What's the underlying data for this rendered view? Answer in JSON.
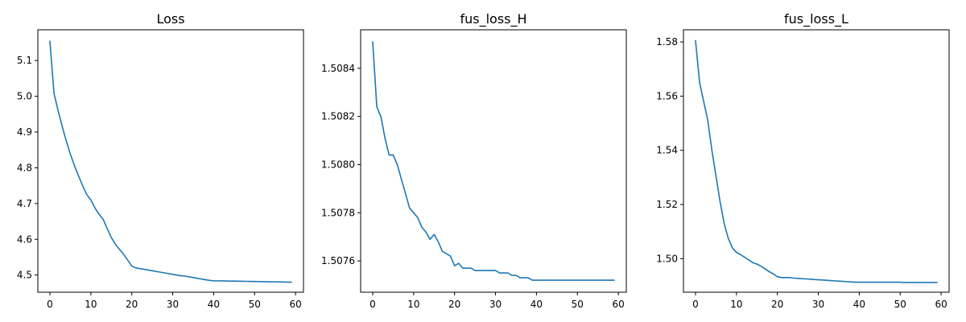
{
  "chart_data": [
    {
      "type": "line",
      "title": "Loss",
      "xlabel": "",
      "ylabel": "",
      "xlim": [
        -2.95,
        61.95
      ],
      "ylim": [
        4.452,
        5.186
      ],
      "xticks": [
        0,
        10,
        20,
        30,
        40,
        50,
        60
      ],
      "yticks": [
        4.5,
        4.6,
        4.7,
        4.8,
        4.9,
        5.0,
        5.1
      ],
      "ytick_labels": [
        "4.5",
        "4.6",
        "4.7",
        "4.8",
        "4.9",
        "5.0",
        "5.1"
      ],
      "grid": false,
      "color": "#1f77b4",
      "x": [
        0,
        1,
        2,
        3,
        4,
        5,
        6,
        7,
        8,
        9,
        10,
        11,
        12,
        13,
        14,
        15,
        16,
        17,
        18,
        19,
        20,
        21,
        22,
        23,
        24,
        25,
        26,
        27,
        28,
        29,
        30,
        31,
        32,
        33,
        34,
        35,
        36,
        37,
        38,
        39,
        40,
        41,
        42,
        43,
        44,
        45,
        46,
        47,
        48,
        49,
        50,
        51,
        52,
        53,
        54,
        55,
        56,
        57,
        58,
        59
      ],
      "y": [
        5.154,
        5.008,
        4.96,
        4.916,
        4.875,
        4.838,
        4.806,
        4.777,
        4.75,
        4.725,
        4.71,
        4.688,
        4.67,
        4.656,
        4.63,
        4.605,
        4.586,
        4.572,
        4.558,
        4.542,
        4.525,
        4.52,
        4.518,
        4.516,
        4.514,
        4.512,
        4.51,
        4.508,
        4.506,
        4.504,
        4.502,
        4.5,
        4.498,
        4.497,
        4.495,
        4.493,
        4.491,
        4.489,
        4.487,
        4.485,
        4.484,
        4.4838,
        4.4836,
        4.4834,
        4.4832,
        4.483,
        4.4828,
        4.4826,
        4.4824,
        4.4822,
        4.482,
        4.4818,
        4.4816,
        4.4814,
        4.4812,
        4.481,
        4.4808,
        4.4806,
        4.4804,
        4.48
      ]
    },
    {
      "type": "line",
      "title": "fus_loss_H",
      "xlabel": "",
      "ylabel": "",
      "xlim": [
        -2.95,
        61.95
      ],
      "ylim": [
        1.50747,
        1.50856
      ],
      "xticks": [
        0,
        10,
        20,
        30,
        40,
        50,
        60
      ],
      "yticks": [
        1.5076,
        1.5078,
        1.508,
        1.5082,
        1.5084
      ],
      "ytick_labels": [
        "1.5076",
        "1.5078",
        "1.5080",
        "1.5082",
        "1.5084"
      ],
      "grid": false,
      "color": "#1f77b4",
      "x": [
        0,
        1,
        2,
        3,
        4,
        5,
        6,
        7,
        8,
        9,
        10,
        11,
        12,
        13,
        14,
        15,
        16,
        17,
        18,
        19,
        20,
        21,
        22,
        23,
        24,
        25,
        26,
        27,
        28,
        29,
        30,
        31,
        32,
        33,
        34,
        35,
        36,
        37,
        38,
        39,
        40,
        41,
        42,
        43,
        44,
        45,
        46,
        47,
        48,
        49,
        50,
        51,
        52,
        53,
        54,
        55,
        56,
        57,
        58,
        59
      ],
      "y": [
        1.50851,
        1.50824,
        1.5082,
        1.50811,
        1.50804,
        1.50804,
        1.508,
        1.50794,
        1.50788,
        1.50782,
        1.5078,
        1.50778,
        1.50774,
        1.50772,
        1.50769,
        1.50771,
        1.50768,
        1.50764,
        1.50763,
        1.50762,
        1.50758,
        1.50759,
        1.50757,
        1.50757,
        1.50757,
        1.50756,
        1.50756,
        1.50756,
        1.50756,
        1.50756,
        1.50756,
        1.50755,
        1.50755,
        1.50755,
        1.50754,
        1.50754,
        1.50753,
        1.50753,
        1.50753,
        1.50752,
        1.50752,
        1.50752,
        1.50752,
        1.50752,
        1.50752,
        1.50752,
        1.50752,
        1.50752,
        1.50752,
        1.50752,
        1.50752,
        1.50752,
        1.50752,
        1.50752,
        1.50752,
        1.50752,
        1.50752,
        1.50752,
        1.50752,
        1.50752
      ]
    },
    {
      "type": "line",
      "title": "fus_loss_L",
      "xlabel": "",
      "ylabel": "",
      "xlim": [
        -2.95,
        61.95
      ],
      "ylim": [
        1.4876,
        1.5845
      ],
      "xticks": [
        0,
        10,
        20,
        30,
        40,
        50,
        60
      ],
      "yticks": [
        1.5,
        1.52,
        1.54,
        1.56,
        1.58
      ],
      "ytick_labels": [
        "1.50",
        "1.52",
        "1.54",
        "1.56",
        "1.58"
      ],
      "grid": false,
      "color": "#1f77b4",
      "x": [
        0,
        1,
        2,
        3,
        4,
        5,
        6,
        7,
        8,
        9,
        10,
        11,
        12,
        13,
        14,
        15,
        16,
        17,
        18,
        19,
        20,
        21,
        22,
        23,
        24,
        25,
        26,
        27,
        28,
        29,
        30,
        31,
        32,
        33,
        34,
        35,
        36,
        37,
        38,
        39,
        40,
        41,
        42,
        43,
        44,
        45,
        46,
        47,
        48,
        49,
        50,
        51,
        52,
        53,
        54,
        55,
        56,
        57,
        58,
        59
      ],
      "y": [
        1.5805,
        1.565,
        1.558,
        1.551,
        1.54,
        1.5305,
        1.521,
        1.513,
        1.5075,
        1.504,
        1.5023,
        1.5015,
        1.5005,
        1.4995,
        1.4985,
        1.498,
        1.4972,
        1.4962,
        1.4952,
        1.4944,
        1.4933,
        1.493,
        1.493,
        1.493,
        1.4928,
        1.4927,
        1.4926,
        1.4925,
        1.4924,
        1.4923,
        1.4922,
        1.4921,
        1.492,
        1.4919,
        1.4918,
        1.4917,
        1.4916,
        1.4915,
        1.4914,
        1.4913,
        1.4913,
        1.4913,
        1.4913,
        1.4913,
        1.4913,
        1.4913,
        1.4913,
        1.4913,
        1.4913,
        1.4913,
        1.4913,
        1.4912,
        1.4912,
        1.4912,
        1.4912,
        1.4912,
        1.4912,
        1.4912,
        1.4912,
        1.4912
      ]
    }
  ]
}
